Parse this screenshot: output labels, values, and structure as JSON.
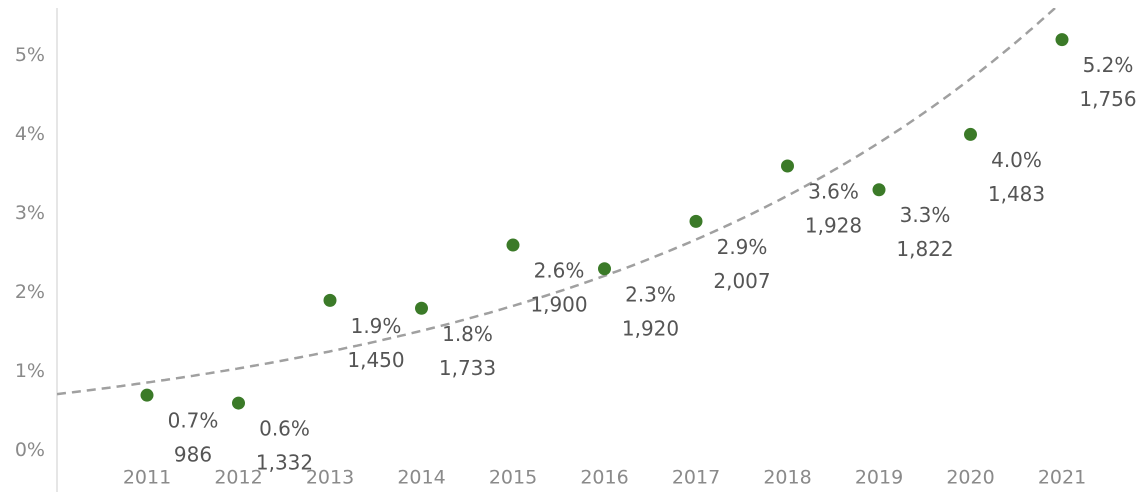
{
  "chart_data": {
    "type": "scatter",
    "categories": [
      "2011",
      "2012",
      "2013",
      "2014",
      "2015",
      "2016",
      "2017",
      "2018",
      "2019",
      "2020",
      "2021"
    ],
    "values": [
      0.7,
      0.6,
      1.9,
      1.8,
      2.6,
      2.3,
      2.9,
      3.6,
      3.3,
      4.0,
      5.2
    ],
    "value_labels": [
      "0.7%",
      "0.6%",
      "1.9%",
      "1.8%",
      "2.6%",
      "2.3%",
      "2.9%",
      "3.6%",
      "3.3%",
      "4.0%",
      "5.2%"
    ],
    "counts": [
      986,
      1332,
      1450,
      1733,
      1900,
      1920,
      2007,
      1928,
      1822,
      1483,
      1756
    ],
    "count_labels": [
      "986",
      "1,332",
      "1,450",
      "1,733",
      "1,900",
      "1,920",
      "2,007",
      "1,928",
      "1,822",
      "1,483",
      "1,756"
    ],
    "color": "#3b7a28",
    "trendline": "exponential",
    "ylim": [
      -0.5,
      5.6
    ],
    "yticks": [
      {
        "value": 0,
        "label": "0%"
      },
      {
        "value": 1,
        "label": "1%"
      },
      {
        "value": 2,
        "label": "2%"
      },
      {
        "value": 3,
        "label": "3%"
      },
      {
        "value": 4,
        "label": "4%"
      },
      {
        "value": 5,
        "label": "5%"
      }
    ]
  }
}
